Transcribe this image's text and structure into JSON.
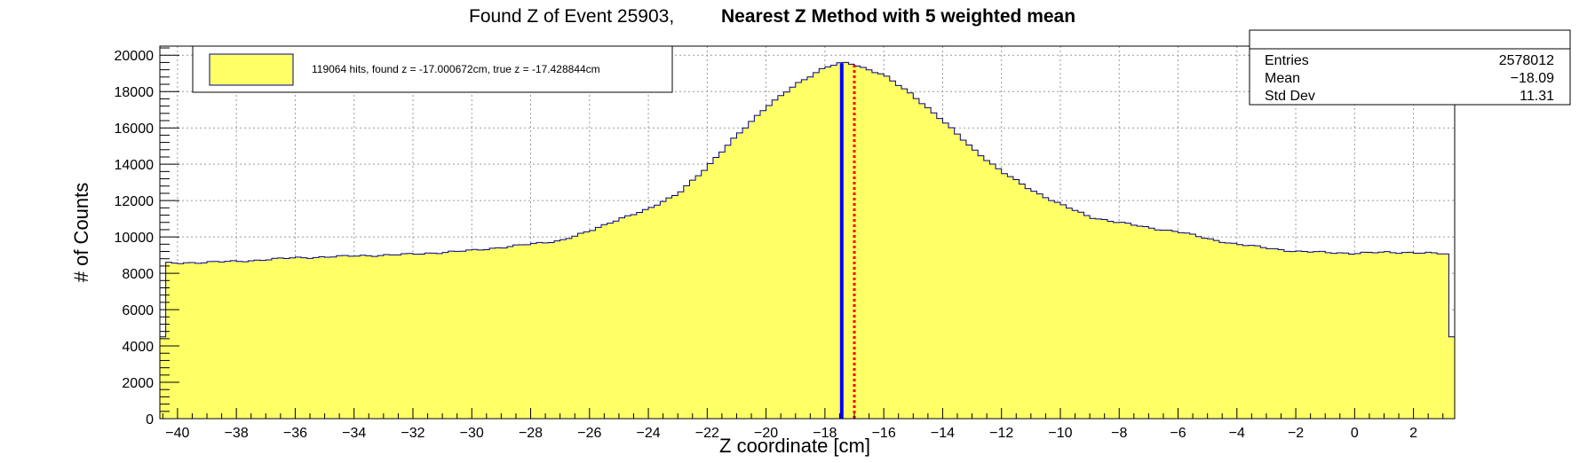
{
  "chart_data": {
    "type": "bar",
    "title": "Found Z of Event 25903,",
    "subtitle": "Nearest Z Method with 5 weighted mean",
    "xlabel": "Z coordinate [cm]",
    "ylabel": "# of Counts",
    "xlim": [
      -40.6,
      3.4
    ],
    "ylim": [
      0,
      20500
    ],
    "x_ticks": [
      -40,
      -38,
      -36,
      -34,
      -32,
      -30,
      -28,
      -26,
      -24,
      -22,
      -20,
      -18,
      -16,
      -14,
      -12,
      -10,
      -8,
      -6,
      -4,
      -2,
      0,
      2
    ],
    "y_ticks": [
      0,
      2000,
      4000,
      6000,
      8000,
      10000,
      12000,
      14000,
      16000,
      18000,
      20000
    ],
    "grid": true,
    "fill_color": "#ffff66",
    "line_color": "#00008b",
    "histogram": {
      "bin_start": -40.6,
      "bin_width": 0.2,
      "first_bin_value": 4500,
      "last_bin_value": 4500,
      "profile_x": [
        -40.4,
        -38,
        -36,
        -34,
        -32,
        -30,
        -28,
        -27,
        -26,
        -25,
        -24,
        -23,
        -22,
        -21,
        -20,
        -19,
        -18,
        -17.5,
        -17.2,
        -17,
        -16,
        -15,
        -14,
        -13,
        -12,
        -11,
        -10,
        -9,
        -8,
        -7,
        -6,
        -5,
        -4,
        -3,
        -2,
        -1,
        0,
        1,
        2,
        3.2
      ],
      "profile_y": [
        8550,
        8650,
        8850,
        8950,
        9050,
        9250,
        9600,
        9800,
        10300,
        11000,
        11500,
        12400,
        13800,
        15600,
        17100,
        18400,
        19300,
        19550,
        19600,
        19500,
        18900,
        17800,
        16400,
        14900,
        13600,
        12600,
        11800,
        11100,
        10800,
        10500,
        10300,
        9900,
        9600,
        9400,
        9200,
        9150,
        9100,
        9150,
        9150,
        9050
      ]
    },
    "lines": [
      {
        "name": "true z",
        "x": -17.428844,
        "color": "#0000ff",
        "style": "solid"
      },
      {
        "name": "found z",
        "x": -17.000672,
        "color": "#ff0000",
        "style": "dotted"
      }
    ],
    "legend": {
      "placement": "top-left",
      "text": "119064 hits, found z = -17.000672cm, true z = -17.428844cm"
    },
    "stats": {
      "entries_label": "Entries",
      "entries_value": "2578012",
      "mean_label": "Mean",
      "mean_value": "−18.09",
      "std_label": "Std Dev",
      "std_value": "11.31"
    }
  }
}
